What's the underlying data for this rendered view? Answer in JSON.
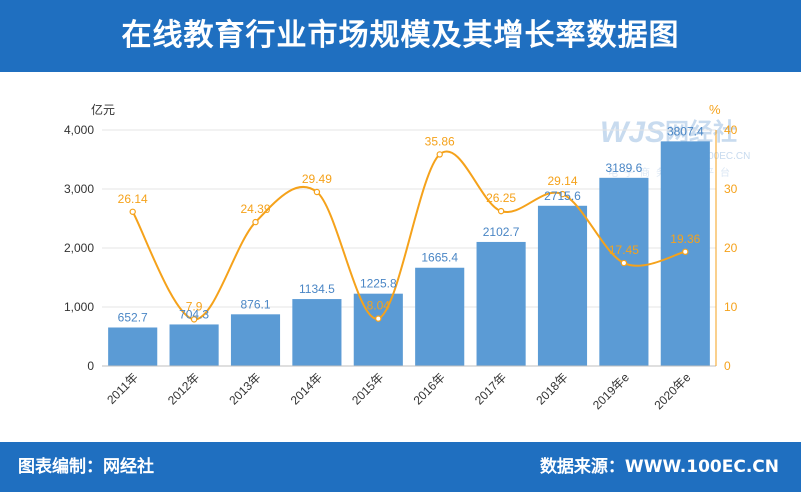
{
  "title": "在线教育行业市场规模及其增长率数据图",
  "footer": {
    "left": "图表编制：网经社",
    "right": "数据来源：WWW.100EC.CN"
  },
  "watermark": {
    "brand": "网经社",
    "url": "WWW.100EC.CN",
    "tagline": "电子商务服务平台"
  },
  "chart_data": {
    "type": "bar",
    "categories": [
      "2011年",
      "2012年",
      "2013年",
      "2014年",
      "2015年",
      "2016年",
      "2017年",
      "2018年",
      "2019年e",
      "2020年e"
    ],
    "series": [
      {
        "type": "bar",
        "axis": "left",
        "color": "#5b9bd5",
        "values": [
          652.7,
          704.3,
          876.1,
          1134.5,
          1225.8,
          1665.4,
          2102.7,
          2715.6,
          3189.6,
          3807.4
        ]
      },
      {
        "type": "line",
        "axis": "right",
        "color": "#f5a21b",
        "smooth": true,
        "values": [
          26.14,
          7.9,
          24.39,
          29.49,
          8.04,
          35.86,
          26.25,
          29.14,
          17.45,
          19.36
        ]
      }
    ],
    "y_left": {
      "unit": "亿元",
      "ylim": [
        0,
        4000
      ],
      "ticks": [
        "0",
        "1,000",
        "2,000",
        "3,000",
        "4,000"
      ],
      "tick_values": [
        0,
        1000,
        2000,
        3000,
        4000
      ]
    },
    "y_right": {
      "unit": "%",
      "ylim": [
        0,
        40
      ],
      "ticks": [
        "0",
        "10",
        "20",
        "30",
        "40"
      ],
      "tick_values": [
        0,
        10,
        20,
        30,
        40
      ]
    },
    "grid": true,
    "legend": "none"
  }
}
